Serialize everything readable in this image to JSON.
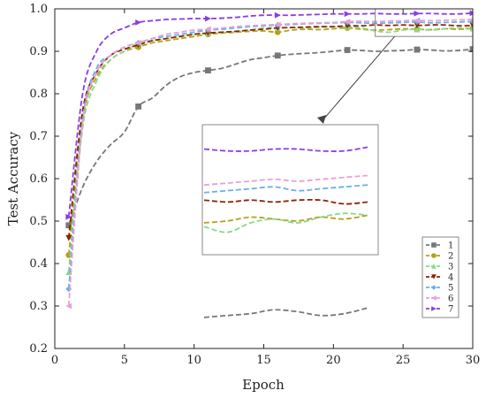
{
  "chart_data": {
    "type": "line",
    "xlabel": "Epoch",
    "ylabel": "Test Accuracy",
    "xlim": [
      0,
      30
    ],
    "ylim": [
      0.2,
      1.0
    ],
    "xticks": [
      0,
      5,
      10,
      15,
      20,
      25,
      30
    ],
    "yticks": [
      0.2,
      0.3,
      0.4,
      0.5,
      0.6,
      0.7,
      0.8,
      0.9,
      1.0
    ],
    "x": [
      1,
      2,
      3,
      4,
      5,
      6,
      7,
      8,
      9,
      10,
      11,
      12,
      13,
      14,
      15,
      16,
      17,
      18,
      19,
      20,
      21,
      22,
      23,
      24,
      25,
      26,
      27,
      28,
      29,
      30
    ],
    "grid": false,
    "legend_position": "bottom-right",
    "inset": {
      "type": "zoom",
      "x_range": [
        23,
        30
      ],
      "y_range": [
        0.935,
        1.0
      ]
    },
    "series": [
      {
        "name": "1",
        "color": "#777777",
        "marker": "square",
        "values": [
          0.49,
          0.58,
          0.64,
          0.68,
          0.71,
          0.77,
          0.79,
          0.82,
          0.84,
          0.85,
          0.855,
          0.86,
          0.87,
          0.88,
          0.885,
          0.89,
          0.893,
          0.895,
          0.897,
          0.9,
          0.903,
          0.902,
          0.9,
          0.901,
          0.902,
          0.904,
          0.903,
          0.901,
          0.902,
          0.905
        ]
      },
      {
        "name": "2",
        "color": "#b5a11d",
        "marker": "circle",
        "values": [
          0.42,
          0.74,
          0.84,
          0.88,
          0.9,
          0.91,
          0.92,
          0.925,
          0.93,
          0.935,
          0.94,
          0.943,
          0.945,
          0.947,
          0.948,
          0.945,
          0.95,
          0.952,
          0.951,
          0.953,
          0.955,
          0.952,
          0.95,
          0.951,
          0.953,
          0.952,
          0.951,
          0.953,
          0.952,
          0.954
        ]
      },
      {
        "name": "3",
        "color": "#8ad88a",
        "marker": "triangle-up",
        "values": [
          0.38,
          0.72,
          0.83,
          0.88,
          0.9,
          0.92,
          0.925,
          0.93,
          0.935,
          0.94,
          0.943,
          0.945,
          0.947,
          0.95,
          0.955,
          0.955,
          0.956,
          0.955,
          0.957,
          0.958,
          0.958,
          0.955,
          0.948,
          0.945,
          0.95,
          0.952,
          0.95,
          0.953,
          0.955,
          0.954
        ]
      },
      {
        "name": "4",
        "color": "#8b2500",
        "marker": "triangle-down",
        "values": [
          0.46,
          0.76,
          0.85,
          0.89,
          0.905,
          0.915,
          0.925,
          0.93,
          0.935,
          0.94,
          0.943,
          0.945,
          0.947,
          0.95,
          0.952,
          0.955,
          0.956,
          0.957,
          0.958,
          0.958,
          0.96,
          0.96,
          0.962,
          0.961,
          0.962,
          0.961,
          0.962,
          0.962,
          0.96,
          0.961
        ]
      },
      {
        "name": "5",
        "color": "#6aaee8",
        "marker": "diamond",
        "values": [
          0.34,
          0.74,
          0.86,
          0.89,
          0.91,
          0.92,
          0.93,
          0.935,
          0.94,
          0.945,
          0.95,
          0.952,
          0.955,
          0.958,
          0.96,
          0.962,
          0.963,
          0.965,
          0.966,
          0.967,
          0.968,
          0.967,
          0.966,
          0.967,
          0.968,
          0.969,
          0.967,
          0.968,
          0.969,
          0.97
        ]
      },
      {
        "name": "6",
        "color": "#e8a0d8",
        "marker": "triangle-left",
        "values": [
          0.3,
          0.73,
          0.85,
          0.89,
          0.91,
          0.92,
          0.93,
          0.94,
          0.945,
          0.95,
          0.952,
          0.955,
          0.958,
          0.96,
          0.962,
          0.963,
          0.965,
          0.966,
          0.967,
          0.968,
          0.97,
          0.971,
          0.97,
          0.971,
          0.972,
          0.973,
          0.972,
          0.973,
          0.974,
          0.975
        ]
      },
      {
        "name": "7",
        "color": "#8a3de6",
        "marker": "triangle-right",
        "values": [
          0.51,
          0.8,
          0.9,
          0.94,
          0.955,
          0.968,
          0.972,
          0.975,
          0.976,
          0.977,
          0.977,
          0.978,
          0.98,
          0.983,
          0.985,
          0.985,
          0.985,
          0.986,
          0.987,
          0.988,
          0.988,
          0.988,
          0.989,
          0.988,
          0.988,
          0.989,
          0.989,
          0.988,
          0.988,
          0.99
        ]
      }
    ]
  }
}
